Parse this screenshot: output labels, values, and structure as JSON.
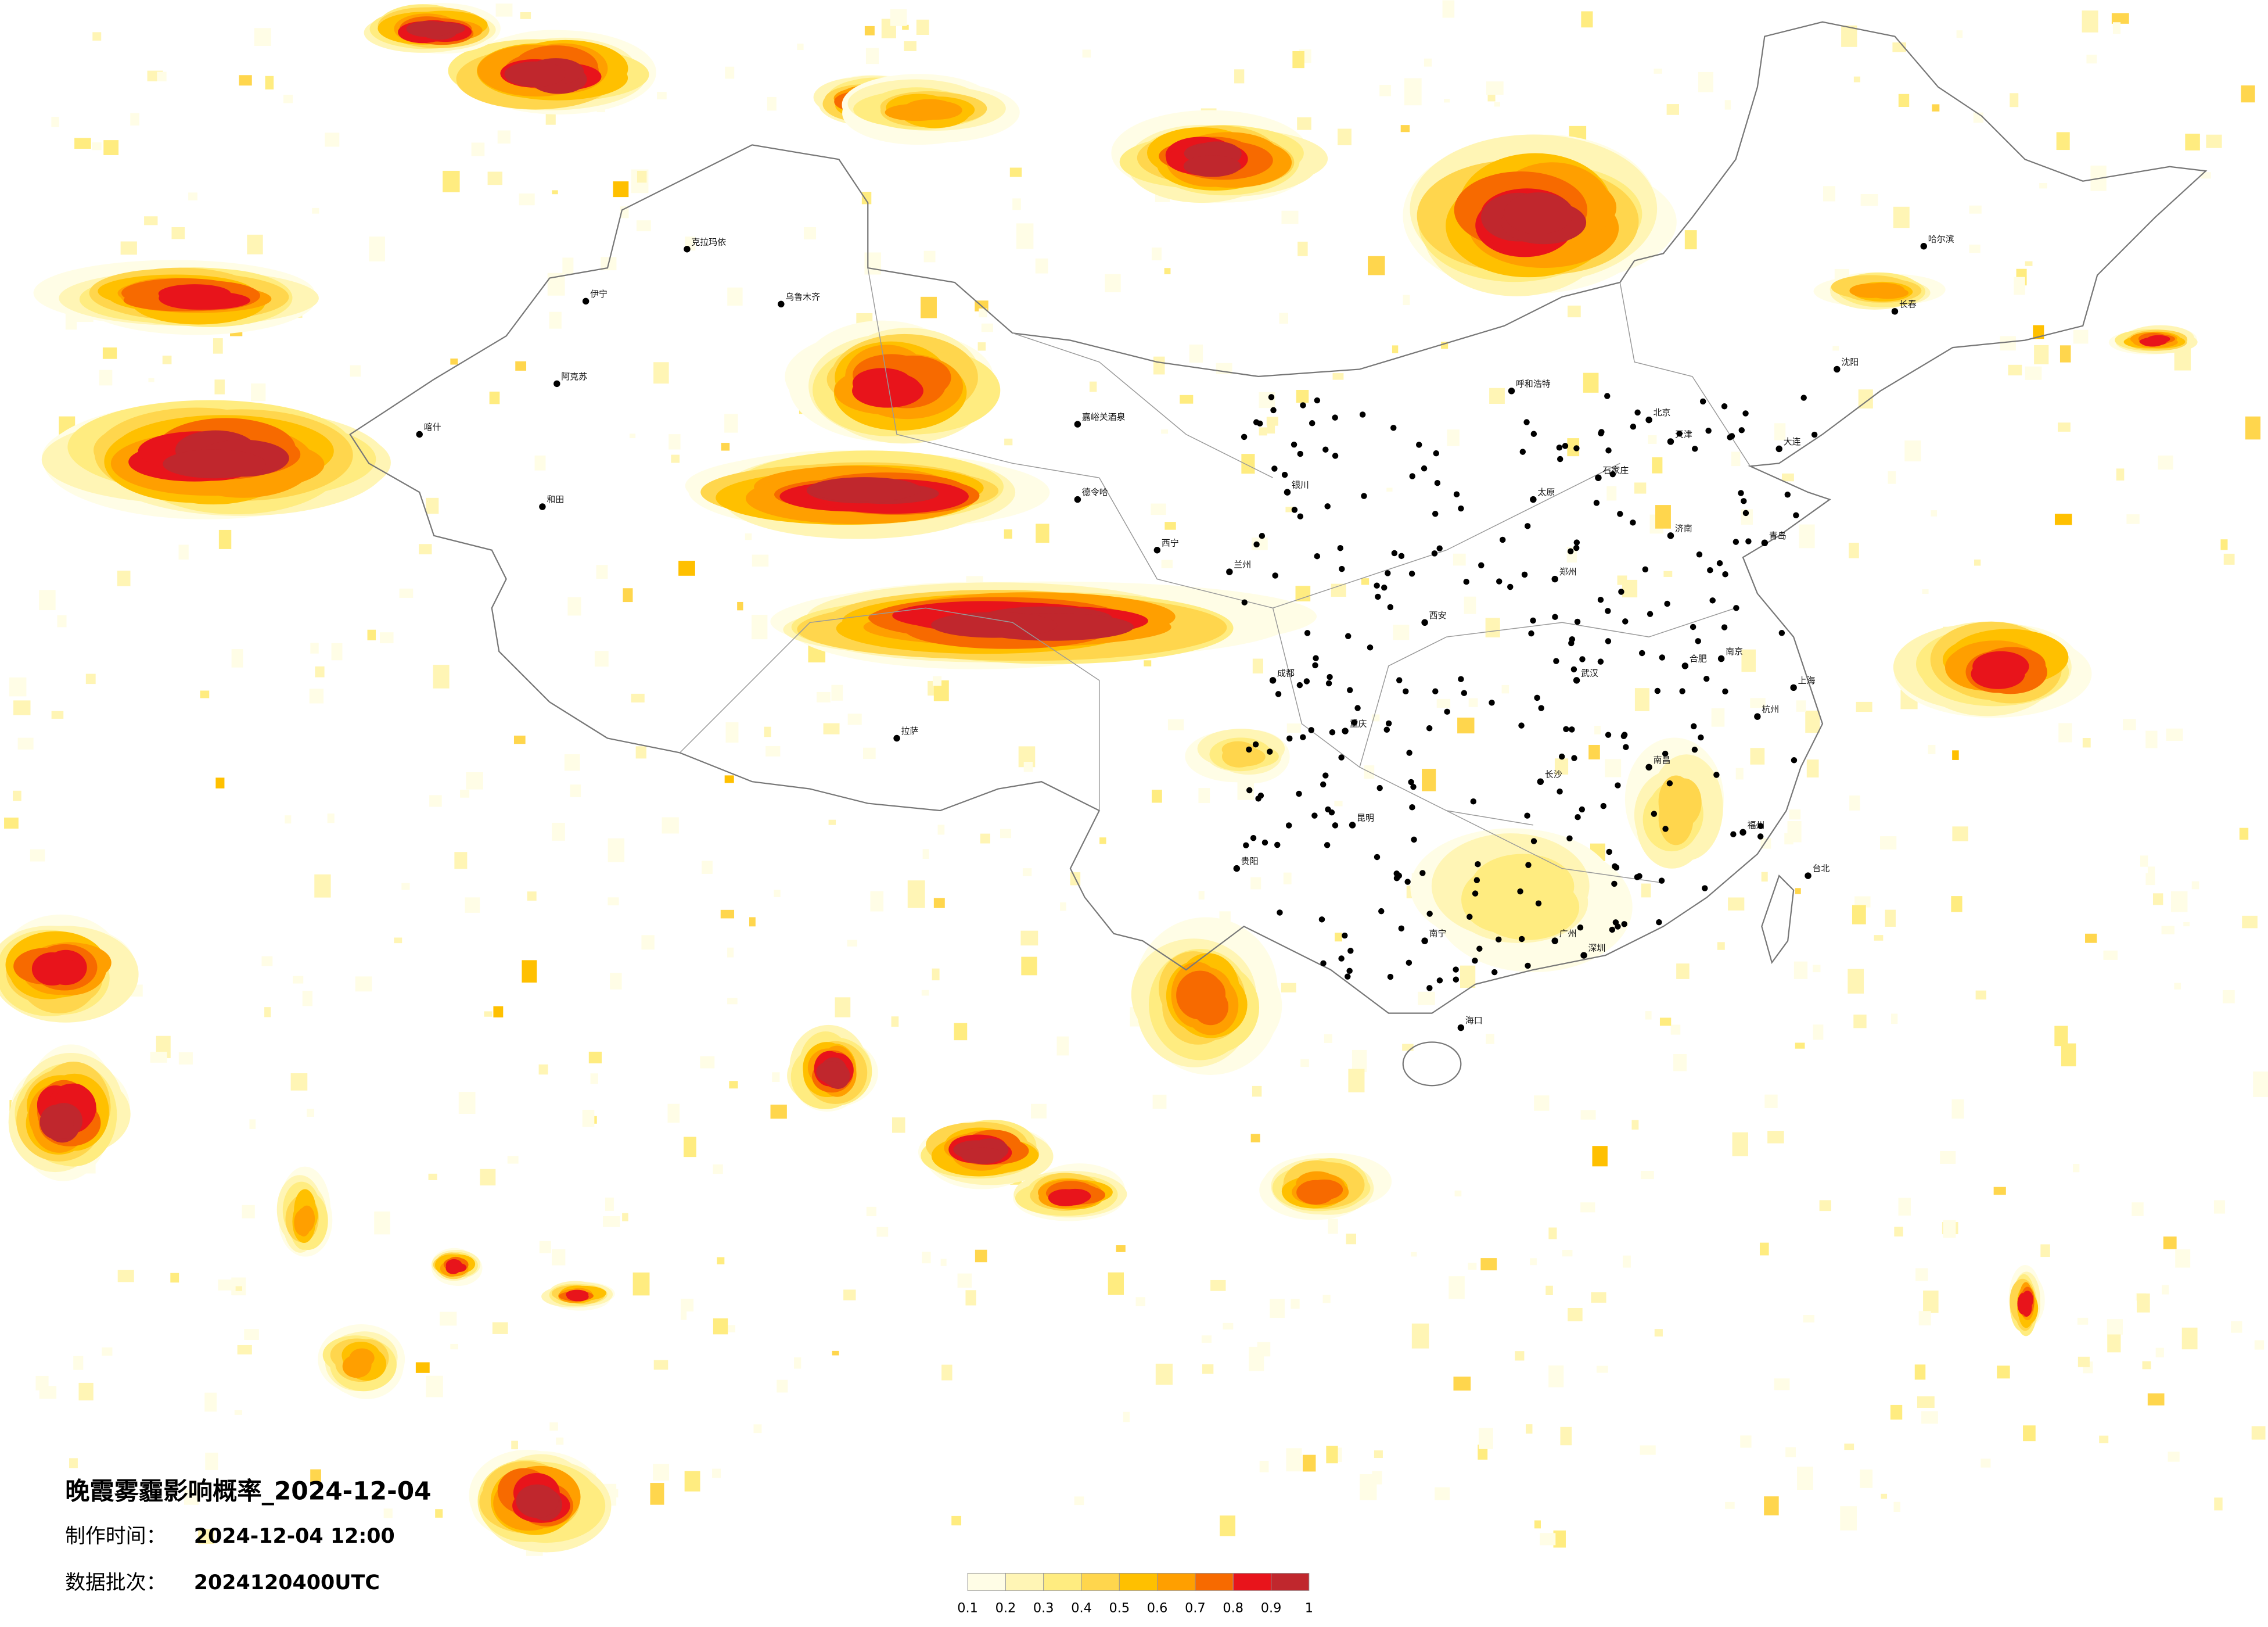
{
  "header": {
    "title": "晚霞雾霾影响概率_2024-12-04",
    "made_label": "制作时间：",
    "made_value": "2024-12-04 12:00",
    "batch_label": "数据批次：",
    "batch_value": "2024120400UTC"
  },
  "legend": {
    "colors": [
      "#fffde6",
      "#fff5b5",
      "#ffec80",
      "#ffd64d",
      "#ffc000",
      "#ff9f00",
      "#f76a00",
      "#e8141b",
      "#c0272d"
    ],
    "ticks": [
      0.1,
      0.2,
      0.3,
      0.4,
      0.5,
      0.6,
      0.7,
      0.8,
      0.9,
      1
    ]
  },
  "cities": [
    "克拉玛依",
    "伊宁",
    "阿克苏",
    "和田",
    "喀什",
    "乌鲁木齐",
    "嘉峪关酒泉",
    "德令哈",
    "拉萨",
    "西宁",
    "兰州",
    "银川",
    "呼和浩特",
    "北京",
    "天津",
    "石家庄",
    "太原",
    "济南",
    "青岛",
    "大连",
    "沈阳",
    "长春",
    "哈尔滨",
    "西安",
    "郑州",
    "合肥",
    "南京",
    "上海",
    "杭州",
    "武汉",
    "长沙",
    "南昌",
    "福州",
    "台北",
    "广州",
    "深圳",
    "南宁",
    "贵阳",
    "昆明",
    "成都",
    "重庆",
    "海口"
  ]
}
